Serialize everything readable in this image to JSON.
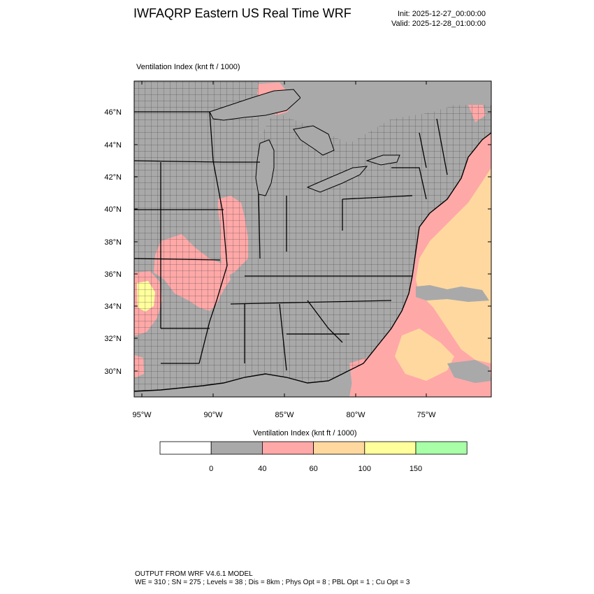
{
  "header": {
    "title": "IWFAQRP Eastern US Real Time WRF",
    "init": "Init: 2025-12-27_00:00:00",
    "valid": "Valid: 2025-12-28_01:00:00"
  },
  "plot": {
    "field_label": "Ventilation Index   (knt ft / 1000)",
    "lat_labels": [
      "46°N",
      "44°N",
      "42°N",
      "40°N",
      "38°N",
      "36°N",
      "34°N",
      "32°N",
      "30°N"
    ],
    "lon_labels": [
      "95°W",
      "90°W",
      "85°W",
      "80°W",
      "75°W"
    ]
  },
  "legend": {
    "title": "Ventilation Index  (knt ft / 1000)",
    "colors": [
      "#ffffff",
      "#a9a9a9",
      "#ffa8a8",
      "#ffd8a0",
      "#ffff9c",
      "#a8ffa8"
    ],
    "tick_labels": [
      "0",
      "40",
      "60",
      "100",
      "150"
    ]
  },
  "footer": {
    "line1": "OUTPUT FROM WRF V4.6.1 MODEL",
    "line2": "WE = 310 ; SN = 275 ; Levels = 38 ; Dis = 8km ; Phys Opt = 8 ; PBL Opt = 1 ; Cu Opt = 3"
  }
}
